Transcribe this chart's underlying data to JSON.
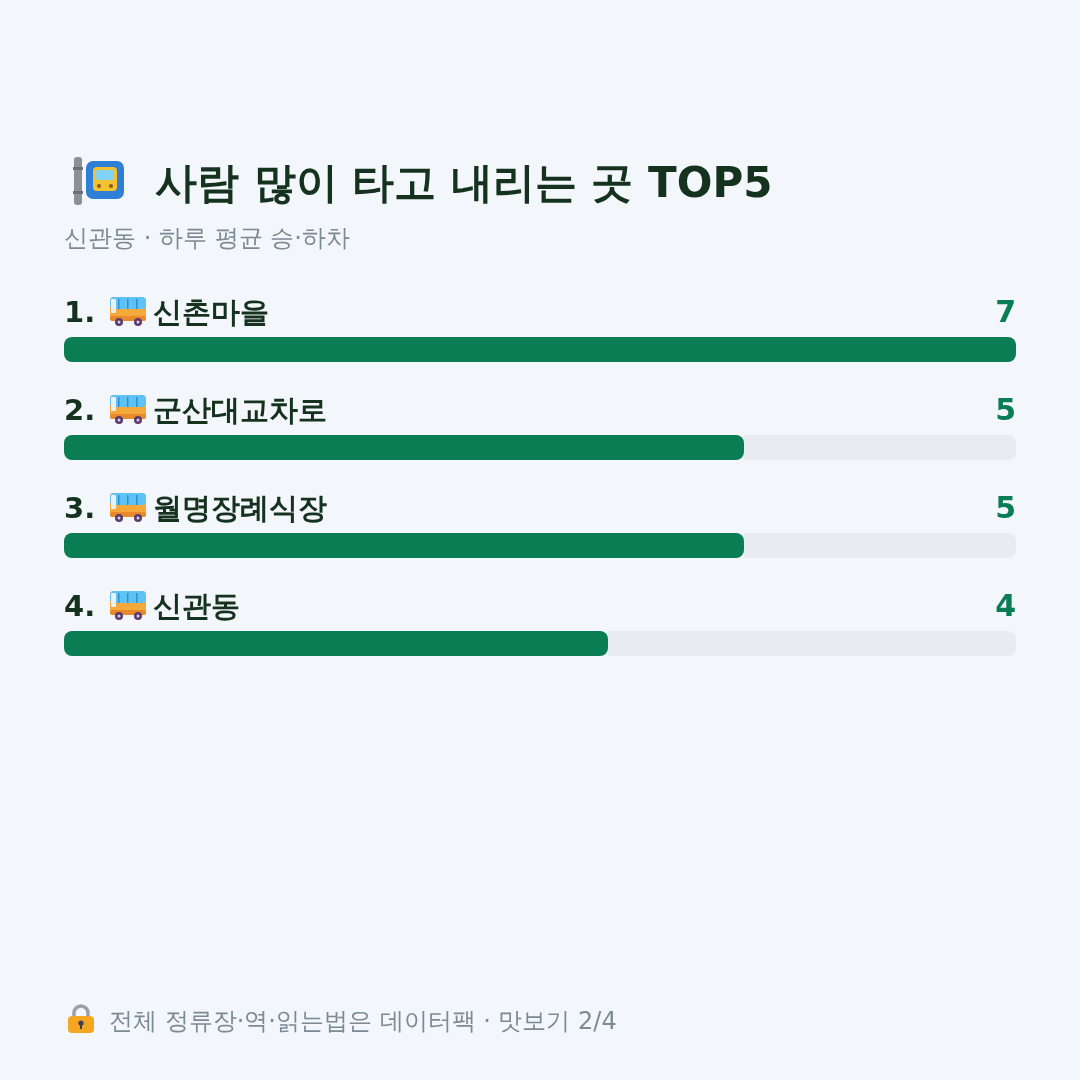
{
  "chart_data": {
    "type": "bar",
    "orientation": "horizontal",
    "title": "사람 많이 타고 내리는 곳 TOP5",
    "subtitle": "신관동 · 하루 평균 승·하차",
    "categories": [
      "1. 신촌마을",
      "2. 군산대교차로",
      "3. 월명장례식장",
      "4. 신관동"
    ],
    "values": [
      7,
      5,
      5,
      4
    ],
    "color": "#0a7d55",
    "xlim": [
      0,
      7
    ],
    "data_labels": true,
    "annotations": [
      "전체 정류장·역·읽는법은 데이터팩 · 맛보기 2/4"
    ]
  }
}
